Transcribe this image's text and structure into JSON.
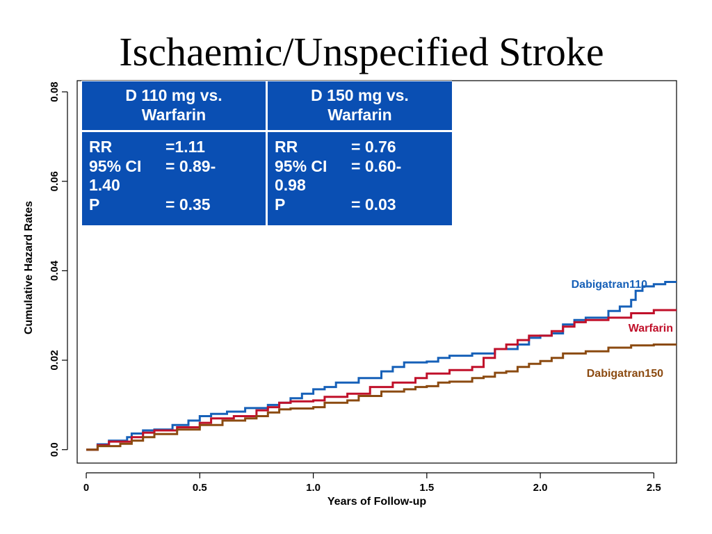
{
  "title": "Ischaemic/Unspecified Stroke",
  "table": {
    "headers": [
      "D 110 mg vs.\nWarfarin",
      "D 150 mg vs.\nWarfarin"
    ],
    "d110": {
      "rr_label": "RR",
      "rr_value": "=1.11",
      "ci_label": "95% CI",
      "ci_value": "= 0.89-",
      "ci_cont": "1.40",
      "p_label": "P",
      "p_value": "= 0.35"
    },
    "d150": {
      "rr_label": "RR",
      "rr_value": "= 0.76",
      "ci_label": "95% CI",
      "ci_value": "= 0.60-",
      "ci_cont": "0.98",
      "p_label": "P",
      "p_value": "= 0.03"
    }
  },
  "colors": {
    "dabigatran110": "#1660b8",
    "warfarin": "#c0102a",
    "dabigatran150": "#8b4a10",
    "table_bg": "#0a4fb3"
  },
  "chart_data": {
    "type": "line",
    "xlabel": "Years of Follow-up",
    "ylabel": "Cumulative Hazard Rates",
    "xlim": [
      -0.04,
      2.6
    ],
    "ylim": [
      -0.003,
      0.0825
    ],
    "x_ticks": [
      0,
      0.5,
      1.0,
      1.5,
      2.0,
      2.5
    ],
    "x_tick_labels": [
      "0",
      "0.5",
      "1.0",
      "1.5",
      "2.0",
      "2.5"
    ],
    "y_ticks": [
      0,
      0.02,
      0.04,
      0.06,
      0.08
    ],
    "y_tick_labels": [
      "0.0",
      "0.02",
      "0.04",
      "0.06",
      "0.08"
    ],
    "series": [
      {
        "name": "Dabigatran110",
        "color": "#1660b8",
        "points": [
          [
            0,
            0
          ],
          [
            0.05,
            0.0012
          ],
          [
            0.1,
            0.002
          ],
          [
            0.18,
            0.0028
          ],
          [
            0.2,
            0.0036
          ],
          [
            0.25,
            0.0043
          ],
          [
            0.3,
            0.0045
          ],
          [
            0.38,
            0.0055
          ],
          [
            0.45,
            0.0065
          ],
          [
            0.5,
            0.0075
          ],
          [
            0.55,
            0.008
          ],
          [
            0.62,
            0.0085
          ],
          [
            0.7,
            0.0093
          ],
          [
            0.8,
            0.01
          ],
          [
            0.85,
            0.0105
          ],
          [
            0.9,
            0.0115
          ],
          [
            0.95,
            0.0125
          ],
          [
            1.0,
            0.0135
          ],
          [
            1.05,
            0.014
          ],
          [
            1.1,
            0.015
          ],
          [
            1.2,
            0.016
          ],
          [
            1.3,
            0.0175
          ],
          [
            1.35,
            0.0185
          ],
          [
            1.4,
            0.0195
          ],
          [
            1.5,
            0.0197
          ],
          [
            1.55,
            0.0205
          ],
          [
            1.6,
            0.021
          ],
          [
            1.7,
            0.0215
          ],
          [
            1.8,
            0.0225
          ],
          [
            1.9,
            0.0235
          ],
          [
            1.95,
            0.025
          ],
          [
            2.0,
            0.0255
          ],
          [
            2.05,
            0.026
          ],
          [
            2.1,
            0.028
          ],
          [
            2.15,
            0.029
          ],
          [
            2.2,
            0.0295
          ],
          [
            2.3,
            0.031
          ],
          [
            2.35,
            0.032
          ],
          [
            2.4,
            0.0335
          ],
          [
            2.42,
            0.0355
          ],
          [
            2.45,
            0.0365
          ],
          [
            2.5,
            0.037
          ],
          [
            2.55,
            0.0375
          ],
          [
            2.6,
            0.0375
          ]
        ]
      },
      {
        "name": "Warfarin",
        "color": "#c0102a",
        "points": [
          [
            0,
            0
          ],
          [
            0.05,
            0.001
          ],
          [
            0.1,
            0.0018
          ],
          [
            0.2,
            0.0028
          ],
          [
            0.25,
            0.0038
          ],
          [
            0.3,
            0.0043
          ],
          [
            0.4,
            0.005
          ],
          [
            0.5,
            0.006
          ],
          [
            0.55,
            0.007
          ],
          [
            0.65,
            0.0075
          ],
          [
            0.75,
            0.0088
          ],
          [
            0.8,
            0.0095
          ],
          [
            0.85,
            0.0105
          ],
          [
            0.9,
            0.0108
          ],
          [
            1.0,
            0.011
          ],
          [
            1.05,
            0.0118
          ],
          [
            1.15,
            0.0125
          ],
          [
            1.25,
            0.014
          ],
          [
            1.35,
            0.015
          ],
          [
            1.45,
            0.016
          ],
          [
            1.5,
            0.017
          ],
          [
            1.6,
            0.0178
          ],
          [
            1.7,
            0.0185
          ],
          [
            1.75,
            0.0205
          ],
          [
            1.8,
            0.0225
          ],
          [
            1.85,
            0.0235
          ],
          [
            1.9,
            0.0245
          ],
          [
            1.95,
            0.0255
          ],
          [
            2.05,
            0.0265
          ],
          [
            2.1,
            0.0275
          ],
          [
            2.15,
            0.0285
          ],
          [
            2.2,
            0.029
          ],
          [
            2.3,
            0.0295
          ],
          [
            2.4,
            0.0305
          ],
          [
            2.5,
            0.0312
          ],
          [
            2.6,
            0.0312
          ]
        ]
      },
      {
        "name": "Dabigatran150",
        "color": "#8b4a10",
        "points": [
          [
            0,
            0
          ],
          [
            0.05,
            0.0008
          ],
          [
            0.15,
            0.0013
          ],
          [
            0.2,
            0.002
          ],
          [
            0.25,
            0.0028
          ],
          [
            0.3,
            0.0035
          ],
          [
            0.4,
            0.0045
          ],
          [
            0.5,
            0.0055
          ],
          [
            0.6,
            0.0065
          ],
          [
            0.7,
            0.007
          ],
          [
            0.75,
            0.0075
          ],
          [
            0.8,
            0.0083
          ],
          [
            0.85,
            0.009
          ],
          [
            0.9,
            0.0092
          ],
          [
            1.0,
            0.0095
          ],
          [
            1.05,
            0.0105
          ],
          [
            1.15,
            0.011
          ],
          [
            1.2,
            0.012
          ],
          [
            1.3,
            0.013
          ],
          [
            1.4,
            0.0135
          ],
          [
            1.45,
            0.014
          ],
          [
            1.5,
            0.0142
          ],
          [
            1.55,
            0.015
          ],
          [
            1.6,
            0.0152
          ],
          [
            1.7,
            0.016
          ],
          [
            1.75,
            0.0163
          ],
          [
            1.8,
            0.0172
          ],
          [
            1.85,
            0.0175
          ],
          [
            1.9,
            0.0185
          ],
          [
            1.95,
            0.0192
          ],
          [
            2.0,
            0.0198
          ],
          [
            2.05,
            0.0205
          ],
          [
            2.1,
            0.0215
          ],
          [
            2.2,
            0.022
          ],
          [
            2.3,
            0.0228
          ],
          [
            2.4,
            0.0233
          ],
          [
            2.5,
            0.0235
          ],
          [
            2.6,
            0.0235
          ]
        ]
      }
    ],
    "labels": [
      "Dabigatran110",
      "Warfarin",
      "Dabigatran150"
    ]
  }
}
